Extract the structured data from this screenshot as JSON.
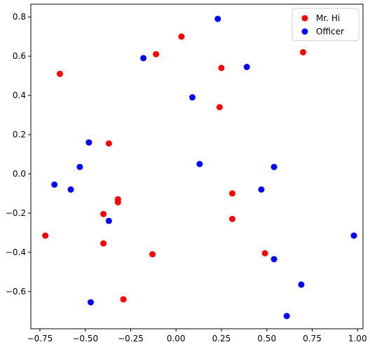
{
  "chart_data": {
    "type": "scatter",
    "title": "",
    "xlabel": "",
    "ylabel": "",
    "xlim": [
      -0.8,
      1.03
    ],
    "ylim": [
      -0.79,
      0.865
    ],
    "x_ticks": [
      -0.75,
      -0.5,
      -0.25,
      0.0,
      0.25,
      0.5,
      0.75,
      1.0
    ],
    "x_tick_labels": [
      "−0.75",
      "−0.50",
      "−0.25",
      "0.00",
      "0.25",
      "0.50",
      "0.75",
      "1.00"
    ],
    "y_ticks": [
      -0.6,
      -0.4,
      -0.2,
      0.0,
      0.2,
      0.4,
      0.6,
      0.8
    ],
    "y_tick_labels": [
      "−0.6",
      "−0.4",
      "−0.2",
      "0.0",
      "0.2",
      "0.4",
      "0.6",
      "0.8"
    ],
    "grid": false,
    "legend_position": "top-right",
    "series": [
      {
        "name": "Mr. Hi",
        "color": "#ff0000",
        "points": [
          [
            -0.64,
            0.51
          ],
          [
            -0.11,
            0.61
          ],
          [
            0.03,
            0.7
          ],
          [
            0.25,
            0.54
          ],
          [
            0.7,
            0.62
          ],
          [
            0.24,
            0.34
          ],
          [
            -0.37,
            0.155
          ],
          [
            0.31,
            -0.1
          ],
          [
            0.31,
            -0.23
          ],
          [
            -0.32,
            -0.13
          ],
          [
            -0.32,
            -0.145
          ],
          [
            -0.4,
            -0.205
          ],
          [
            -0.72,
            -0.315
          ],
          [
            -0.4,
            -0.355
          ],
          [
            -0.13,
            -0.41
          ],
          [
            0.49,
            -0.405
          ],
          [
            -0.29,
            -0.64
          ]
        ]
      },
      {
        "name": "Officer",
        "color": "#0000ff",
        "points": [
          [
            0.23,
            0.79
          ],
          [
            -0.18,
            0.59
          ],
          [
            0.39,
            0.545
          ],
          [
            0.09,
            0.39
          ],
          [
            -0.48,
            0.16
          ],
          [
            -0.53,
            0.035
          ],
          [
            0.13,
            0.05
          ],
          [
            0.54,
            0.035
          ],
          [
            -0.67,
            -0.055
          ],
          [
            -0.58,
            -0.08
          ],
          [
            0.47,
            -0.08
          ],
          [
            -0.37,
            -0.24
          ],
          [
            0.98,
            -0.315
          ],
          [
            0.54,
            -0.435
          ],
          [
            0.69,
            -0.565
          ],
          [
            -0.47,
            -0.655
          ],
          [
            0.61,
            -0.725
          ]
        ]
      }
    ]
  }
}
